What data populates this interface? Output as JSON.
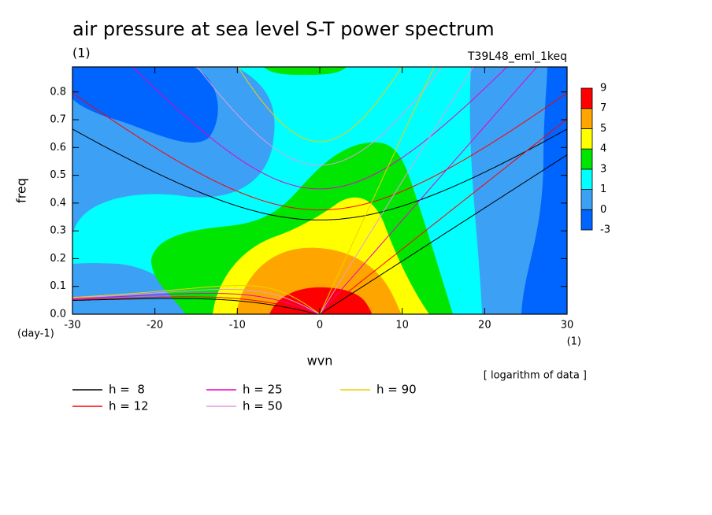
{
  "chart_data": {
    "type": "contour",
    "title": "air pressure at sea level S-T power spectrum",
    "subtitle": "(1)",
    "run_label": "T39L48_eml_1keq",
    "xlabel": "wvn",
    "ylabel": "freq",
    "x_unit": "(1)",
    "y_unit": "(day-1)",
    "note": "[ logarithm of data ]",
    "xlim": [
      -30,
      30
    ],
    "ylim": [
      0,
      0.89
    ],
    "xticks": [
      -30,
      -20,
      -10,
      0,
      10,
      20,
      30
    ],
    "yticks": [
      {
        "value": 0,
        "label": "0.0"
      },
      0.1,
      0.2,
      0.3,
      0.4,
      0.5,
      0.6,
      0.7,
      0.8
    ],
    "colorbar": {
      "levels": [
        -3,
        0,
        1,
        3,
        4,
        5,
        7,
        9
      ],
      "colors": [
        "#0064ff",
        "#3ca0f5",
        "#00ffff",
        "#00e600",
        "#ffff00",
        "#ffa500",
        "#ff0000"
      ]
    },
    "series": [
      {
        "name": "h =  8",
        "h": 8,
        "color": "#000000"
      },
      {
        "name": "h = 12",
        "h": 12,
        "color": "#ff0000"
      },
      {
        "name": "h = 25",
        "h": 25,
        "color": "#e600c8"
      },
      {
        "name": "h = 50",
        "h": 50,
        "color": "#e09be0"
      },
      {
        "name": "h = 90",
        "h": 90,
        "color": "#f0d000"
      }
    ]
  }
}
